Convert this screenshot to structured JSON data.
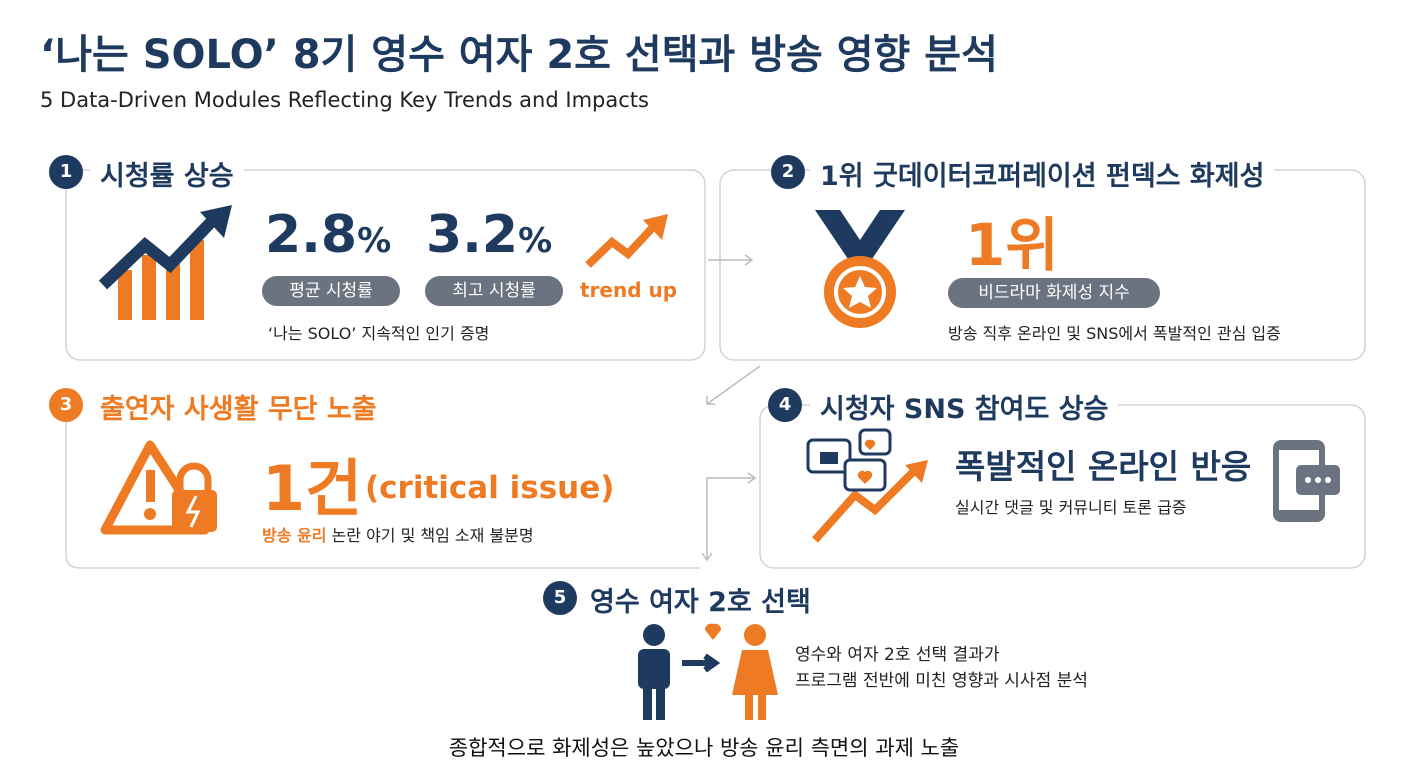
{
  "header": {
    "title": "‘나는 SOLO’ 8기 영수 여자 2호 선택과 방송 영향 분석",
    "subtitle": "5 Data-Driven Modules Reflecting Key Trends and Impacts"
  },
  "modules": [
    {
      "number": "1",
      "title": "시청률 상승",
      "stats": [
        {
          "value": "2.8",
          "unit": "%",
          "label": "평균 시청률"
        },
        {
          "value": "3.2",
          "unit": "%",
          "label": "최고 시청률"
        }
      ],
      "trend": "trend up",
      "note": "‘나는 SOLO’ 지속적인 인기 증명"
    },
    {
      "number": "2",
      "title": "1위 굿데이터코퍼레이션 펀덱스 화제성",
      "big": "1위",
      "label": "비드라마 화제성 지수",
      "note": "방송 직후 온라인 및 SNS에서 폭발적인 관심 입증"
    },
    {
      "number": "3",
      "title": "출연자 사생활 무단 노출",
      "big": "1건",
      "tag": "(critical issue)",
      "note_highlight": "방송 윤리",
      "note": " 논란 야기 및 책임 소재 불분명"
    },
    {
      "number": "4",
      "title": "시청자 SNS 참여도 상승",
      "headline": "폭발적인 온라인 반응",
      "note": "실시간 댓글 및 커뮤니티 토론 급증"
    },
    {
      "number": "5",
      "title": "영수 여자 2호 선택",
      "lines": [
        "영수와 여자 2호 선택 결과가",
        "프로그램 전반에 미친 영향과 시사점 분석"
      ]
    }
  ],
  "footer": "종합적으로 화제성은 높았으나 방송 윤리 측면의 과제 노출"
}
